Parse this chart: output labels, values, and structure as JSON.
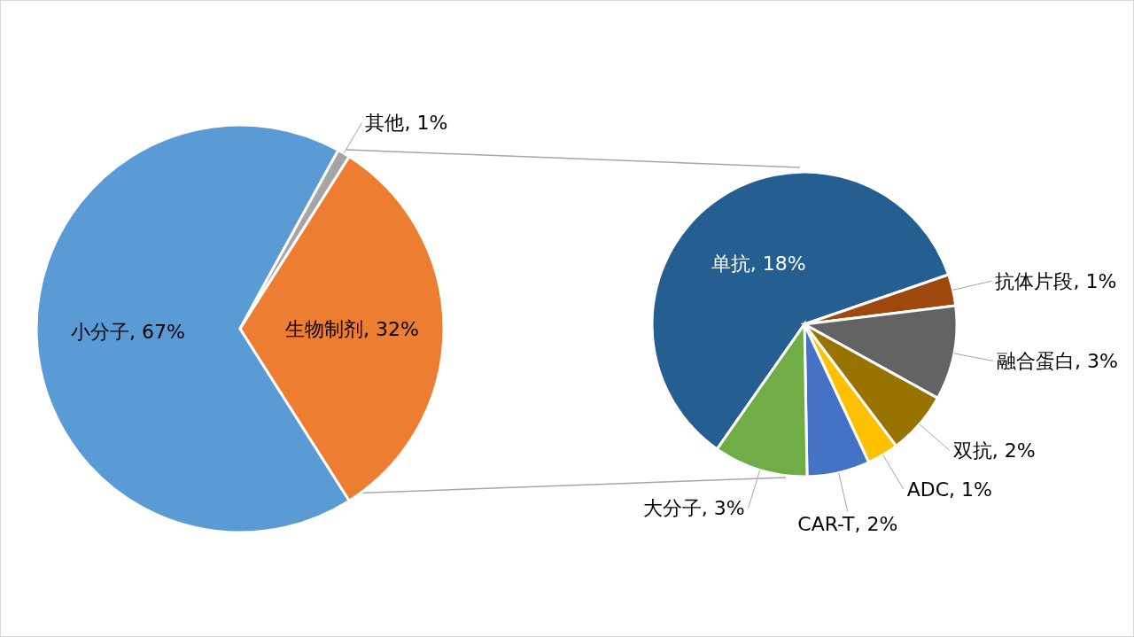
{
  "chart_data": [
    {
      "type": "pie",
      "categories": [
        "小分子",
        "其他",
        "生物制剂"
      ],
      "values": [
        67,
        1,
        32
      ],
      "value_labels": [
        "67%",
        "1%",
        "32%"
      ],
      "colors": [
        "#5b9bd5",
        "#a5a5a5",
        "#ed7d31"
      ]
    },
    {
      "type": "pie",
      "categories": [
        "单抗",
        "抗体片段",
        "融合蛋白",
        "双抗",
        "ADC",
        "CAR-T",
        "大分子"
      ],
      "values": [
        18,
        1,
        3,
        2,
        1,
        2,
        3
      ],
      "value_labels": [
        "18%",
        "1%",
        "3%",
        "2%",
        "1%",
        "2%",
        "3%"
      ],
      "colors": [
        "#255e91",
        "#9e480e",
        "#636363",
        "#997300",
        "#ffc000",
        "#4472c4",
        "#70ad47"
      ]
    }
  ]
}
